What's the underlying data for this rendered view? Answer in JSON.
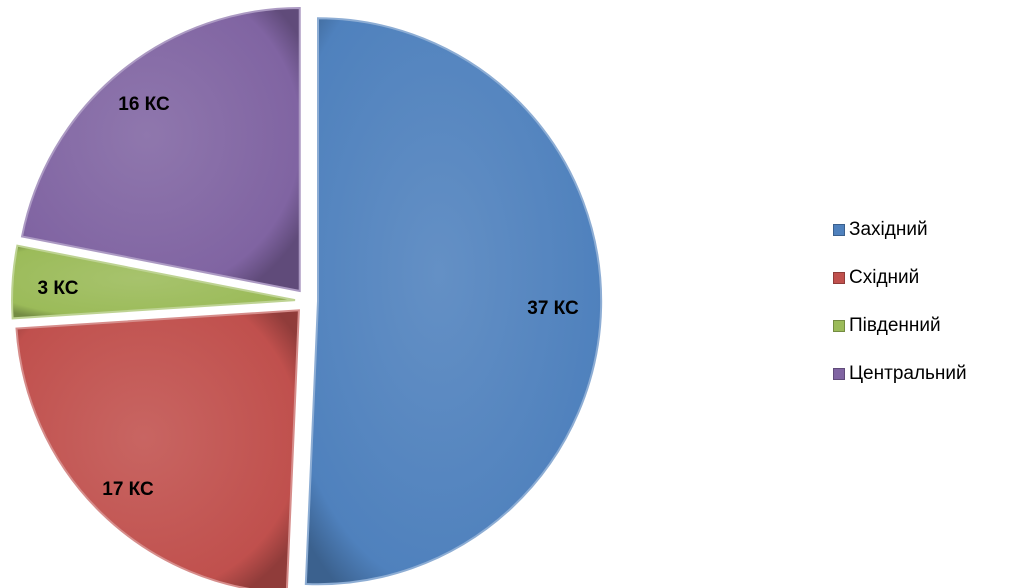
{
  "chart_data": {
    "type": "pie",
    "title": "",
    "exploded": true,
    "legend_position": "right",
    "categories": [
      "Західний",
      "Східний",
      "Південний",
      "Центральний"
    ],
    "values": [
      37,
      17,
      3,
      16
    ],
    "data_labels": [
      "37 КС",
      "17 КС",
      "3 КС",
      "16 КС"
    ],
    "colors": [
      "#4F81BD",
      "#C0504D",
      "#9BBB59",
      "#8064A2"
    ]
  }
}
